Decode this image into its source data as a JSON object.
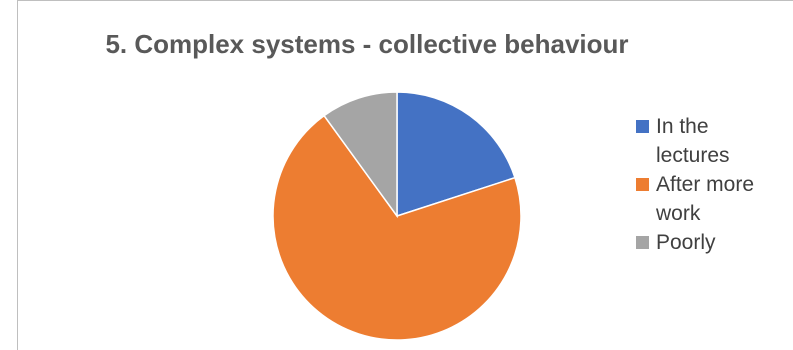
{
  "chart_data": {
    "type": "pie",
    "title": "5. Complex systems - collective behaviour",
    "categories": [
      "In the lectures",
      "After more work",
      "Poorly"
    ],
    "values": [
      20,
      70,
      10
    ],
    "colors": [
      "#4472c4",
      "#ed7d31",
      "#a5a5a5"
    ],
    "legend_position": "right"
  }
}
